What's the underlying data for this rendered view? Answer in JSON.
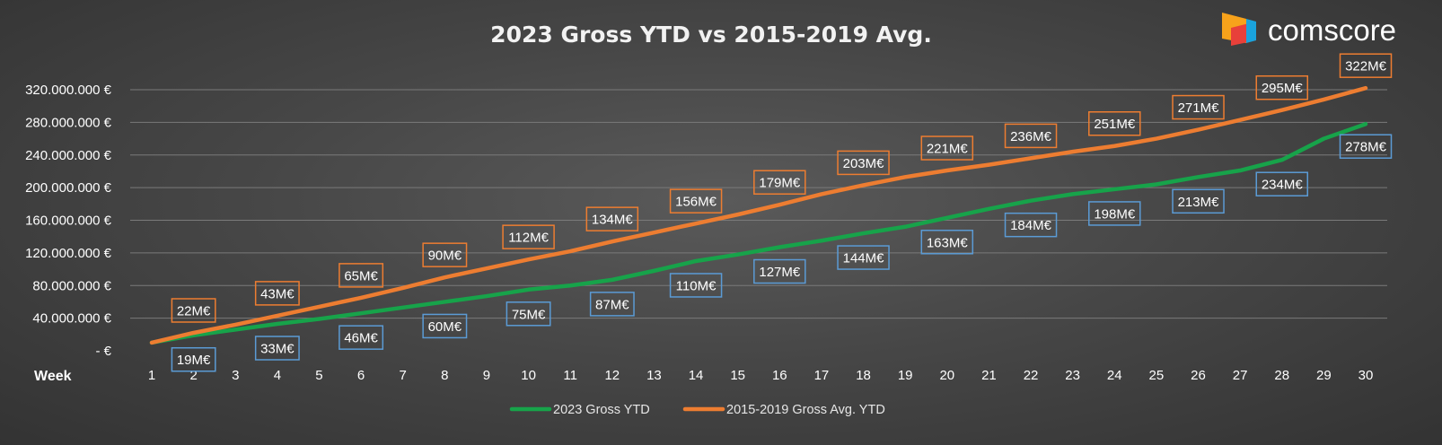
{
  "brand": {
    "name": "comscore",
    "colors": {
      "orange": "#f7a21b",
      "red": "#e8403a",
      "blue": "#1aa3dd"
    }
  },
  "chart_data": {
    "type": "line",
    "title": "2023 Gross YTD vs 2015-2019 Avg.",
    "xlabel": "Week",
    "ylabel": "",
    "x": [
      1,
      2,
      3,
      4,
      5,
      6,
      7,
      8,
      9,
      10,
      11,
      12,
      13,
      14,
      15,
      16,
      17,
      18,
      19,
      20,
      21,
      22,
      23,
      24,
      25,
      26,
      27,
      28,
      29,
      30
    ],
    "y_ticks": [
      0,
      40000000,
      80000000,
      120000000,
      160000000,
      200000000,
      240000000,
      280000000,
      320000000
    ],
    "y_tick_labels": [
      "-  €",
      "40.000.000 €",
      "80.000.000 €",
      "120.000.000 €",
      "160.000.000 €",
      "200.000.000 €",
      "240.000.000 €",
      "280.000.000 €",
      "320.000.000 €"
    ],
    "ylim": [
      0,
      345000000
    ],
    "grid": true,
    "legend_position": "bottom",
    "series": [
      {
        "name": "2023 Gross YTD",
        "color": "#17a34a",
        "values": [
          10000000,
          19000000,
          26000000,
          33000000,
          39000000,
          46000000,
          53000000,
          60000000,
          67000000,
          75000000,
          80000000,
          87000000,
          98000000,
          110000000,
          118000000,
          127000000,
          135000000,
          144000000,
          152000000,
          163000000,
          174000000,
          184000000,
          192000000,
          198000000,
          204000000,
          213000000,
          221000000,
          234000000,
          260000000,
          278000000
        ],
        "labels": [
          null,
          "19M€",
          null,
          "33M€",
          null,
          "46M€",
          null,
          "60M€",
          null,
          "75M€",
          null,
          "87M€",
          null,
          "110M€",
          null,
          "127M€",
          null,
          "144M€",
          null,
          "163M€",
          null,
          "184M€",
          null,
          "198M€",
          null,
          "213M€",
          null,
          "234M€",
          null,
          "278M€"
        ],
        "label_color": "#5b9bd5"
      },
      {
        "name": "2015-2019 Gross Avg. YTD",
        "color": "#ed7d31",
        "values": [
          10000000,
          22000000,
          32000000,
          43000000,
          54000000,
          65000000,
          77000000,
          90000000,
          101000000,
          112000000,
          122000000,
          134000000,
          145000000,
          156000000,
          167000000,
          179000000,
          192000000,
          203000000,
          213000000,
          221000000,
          228000000,
          236000000,
          244000000,
          251000000,
          260000000,
          271000000,
          283000000,
          295000000,
          308000000,
          322000000
        ],
        "labels": [
          null,
          "22M€",
          null,
          "43M€",
          null,
          "65M€",
          null,
          "90M€",
          null,
          "112M€",
          null,
          "134M€",
          null,
          "156M€",
          null,
          "179M€",
          null,
          "203M€",
          null,
          "221M€",
          null,
          "236M€",
          null,
          "251M€",
          null,
          "271M€",
          null,
          "295M€",
          null,
          "322M€"
        ],
        "label_color": "#ed7d31"
      }
    ]
  }
}
